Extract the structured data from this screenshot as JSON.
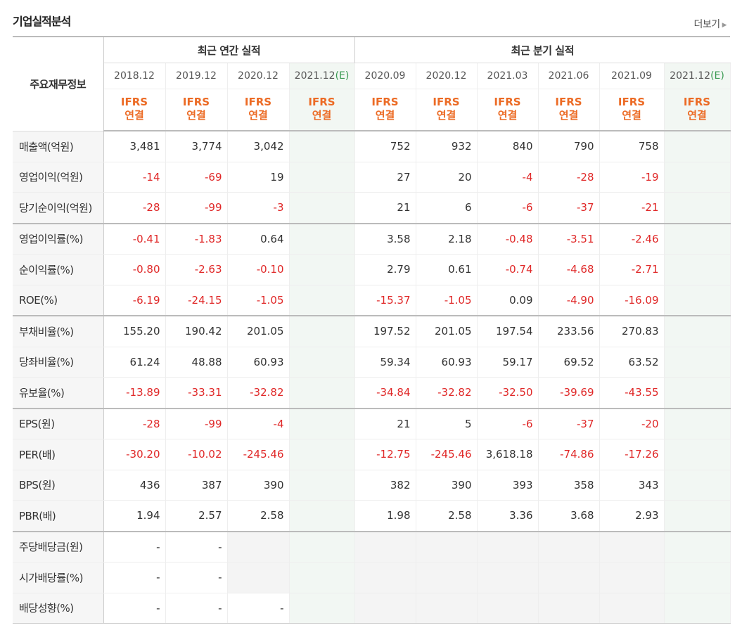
{
  "section_title": "기업실적분석",
  "more_label": "더보기",
  "header": {
    "row_label": "주요재무정보",
    "annual_label": "최근 연간 실적",
    "quarter_label": "최근 분기 실적",
    "annual_periods": [
      "2018.12",
      "2019.12",
      "2020.12",
      "2021.12"
    ],
    "quarter_periods": [
      "2020.09",
      "2020.12",
      "2021.03",
      "2021.06",
      "2021.09",
      "2021.12"
    ],
    "estimate_suffix": "(E)",
    "ifrs_label": "IFRS",
    "consolidated_label": "연결"
  },
  "rows": [
    {
      "label": "매출액(억원)",
      "values": [
        "3,481",
        "3,774",
        "3,042",
        "",
        "752",
        "932",
        "840",
        "790",
        "758",
        ""
      ]
    },
    {
      "label": "영업이익(억원)",
      "values": [
        "-14",
        "-69",
        "19",
        "",
        "27",
        "20",
        "-4",
        "-28",
        "-19",
        ""
      ]
    },
    {
      "label": "당기순이익(억원)",
      "values": [
        "-28",
        "-99",
        "-3",
        "",
        "21",
        "6",
        "-6",
        "-37",
        "-21",
        ""
      ]
    },
    {
      "label": "영업이익률(%)",
      "values": [
        "-0.41",
        "-1.83",
        "0.64",
        "",
        "3.58",
        "2.18",
        "-0.48",
        "-3.51",
        "-2.46",
        ""
      ]
    },
    {
      "label": "순이익률(%)",
      "values": [
        "-0.80",
        "-2.63",
        "-0.10",
        "",
        "2.79",
        "0.61",
        "-0.74",
        "-4.68",
        "-2.71",
        ""
      ]
    },
    {
      "label": "ROE(%)",
      "values": [
        "-6.19",
        "-24.15",
        "-1.05",
        "",
        "-15.37",
        "-1.05",
        "0.09",
        "-4.90",
        "-16.09",
        ""
      ]
    },
    {
      "label": "부채비율(%)",
      "values": [
        "155.20",
        "190.42",
        "201.05",
        "",
        "197.52",
        "201.05",
        "197.54",
        "233.56",
        "270.83",
        ""
      ]
    },
    {
      "label": "당좌비율(%)",
      "values": [
        "61.24",
        "48.88",
        "60.93",
        "",
        "59.34",
        "60.93",
        "59.17",
        "69.52",
        "63.52",
        ""
      ]
    },
    {
      "label": "유보율(%)",
      "values": [
        "-13.89",
        "-33.31",
        "-32.82",
        "",
        "-34.84",
        "-32.82",
        "-32.50",
        "-39.69",
        "-43.55",
        ""
      ]
    },
    {
      "label": "EPS(원)",
      "values": [
        "-28",
        "-99",
        "-4",
        "",
        "21",
        "5",
        "-6",
        "-37",
        "-20",
        ""
      ]
    },
    {
      "label": "PER(배)",
      "values": [
        "-30.20",
        "-10.02",
        "-245.46",
        "",
        "-12.75",
        "-245.46",
        "3,618.18",
        "-74.86",
        "-17.26",
        ""
      ]
    },
    {
      "label": "BPS(원)",
      "values": [
        "436",
        "387",
        "390",
        "",
        "382",
        "390",
        "393",
        "358",
        "343",
        ""
      ]
    },
    {
      "label": "PBR(배)",
      "values": [
        "1.94",
        "2.57",
        "2.58",
        "",
        "1.98",
        "2.58",
        "3.36",
        "3.68",
        "2.93",
        ""
      ]
    },
    {
      "label": "주당배당금(원)",
      "values": [
        "-",
        "-",
        "",
        "",
        "",
        "",
        "",
        "",
        "",
        ""
      ]
    },
    {
      "label": "시가배당률(%)",
      "values": [
        "-",
        "-",
        "",
        "",
        "",
        "",
        "",
        "",
        "",
        ""
      ]
    },
    {
      "label": "배당성향(%)",
      "values": [
        "-",
        "-",
        "-",
        "",
        "",
        "",
        "",
        "",
        "",
        ""
      ]
    }
  ],
  "colors": {
    "negative": "#e02828",
    "ifrs": "#ec6b25",
    "estimate": "#3a9a52"
  }
}
